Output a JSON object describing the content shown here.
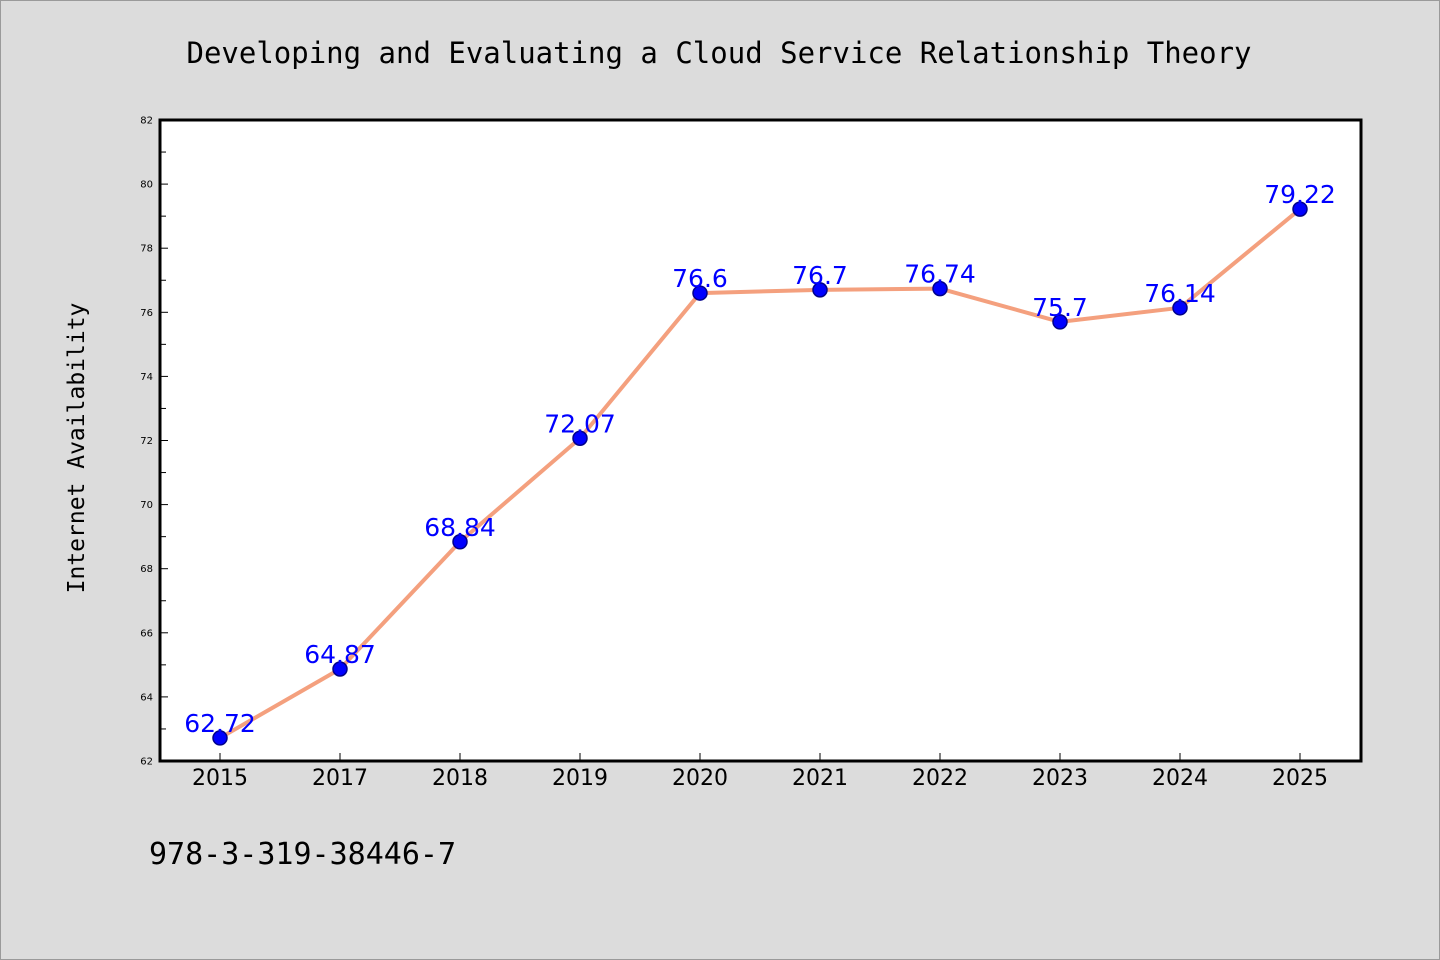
{
  "chart_data": {
    "type": "line",
    "title": "Developing and Evaluating a Cloud Service Relationship Theory",
    "xlabel": "",
    "ylabel": "Internet Availability",
    "categories": [
      "2015",
      "2017",
      "2018",
      "2019",
      "2020",
      "2021",
      "2022",
      "2023",
      "2024",
      "2025"
    ],
    "series": [
      {
        "values": [
          62.72,
          64.87,
          68.84,
          72.07,
          76.6,
          76.7,
          76.74,
          75.7,
          76.14,
          79.22
        ]
      }
    ],
    "data_labels": [
      "62.72",
      "64.87",
      "68.84",
      "72.07",
      "76.6",
      "76.7",
      "76.74",
      "75.7",
      "76.14",
      "79.22"
    ],
    "ylim": [
      62,
      82
    ],
    "yticks": [
      "62",
      "64",
      "66",
      "68",
      "70",
      "72",
      "74",
      "76",
      "78",
      "80",
      "82"
    ],
    "grid": false,
    "legend": "none",
    "colors": {
      "line": "#f4a07e",
      "marker": "#0000ff",
      "marker_edge": "#00008b",
      "label": "#0000ff"
    }
  },
  "footer_text": "978-3-319-38446-7"
}
